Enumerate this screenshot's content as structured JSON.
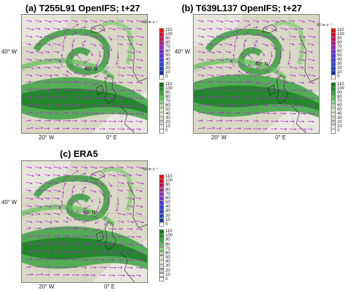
{
  "panels": [
    {
      "id": "a",
      "title": "(a) T255L91 OpenIFS; t+27",
      "lon_left": "20° W",
      "lon_right": "0° E",
      "lat_left": "40° W",
      "center": "60° N"
    },
    {
      "id": "b",
      "title": "(b) T639L137 OpenIFS; t+27",
      "lon_left": "20° W",
      "lon_right": "0° E",
      "lat_left": "40° W",
      "center": "60° N"
    },
    {
      "id": "c",
      "title": "(c) ERA5",
      "lon_left": "20° W",
      "lon_right": "0° E",
      "lat_left": "40° W",
      "center": "60° N"
    }
  ],
  "wind_colorbar": {
    "unit": "50 m s⁻¹",
    "ticks": [
      "110",
      "100",
      "90",
      "80",
      "70",
      "60",
      "50",
      "40",
      "30",
      "20",
      "10",
      "0"
    ],
    "colors": [
      "#ff0000",
      "#e8002a",
      "#cc0a5a",
      "#b81890",
      "#a020c8",
      "#7a28e0",
      "#5032f0",
      "#3a3ce8",
      "#2c44dc",
      "#2040c8",
      "#1830b0",
      "#ffffff"
    ]
  },
  "fill_colorbar": {
    "ticks": [
      "110",
      "100",
      "90",
      "80",
      "70",
      "60",
      "50",
      "40",
      "30",
      "20",
      "10",
      "0"
    ],
    "colors": [
      "#0e7a1c",
      "#1d9426",
      "#35ab3a",
      "#5fc55a",
      "#8ad482",
      "#b5dfa8",
      "#d4e6c5",
      "#e0e0d0",
      "#d6d6c6",
      "#cccccc",
      "#e8e8e8",
      "#ffffff"
    ]
  },
  "colors": {
    "arrow": "#b428d4",
    "coast": "#2a2a2a",
    "grid": "#7a7a7a"
  }
}
